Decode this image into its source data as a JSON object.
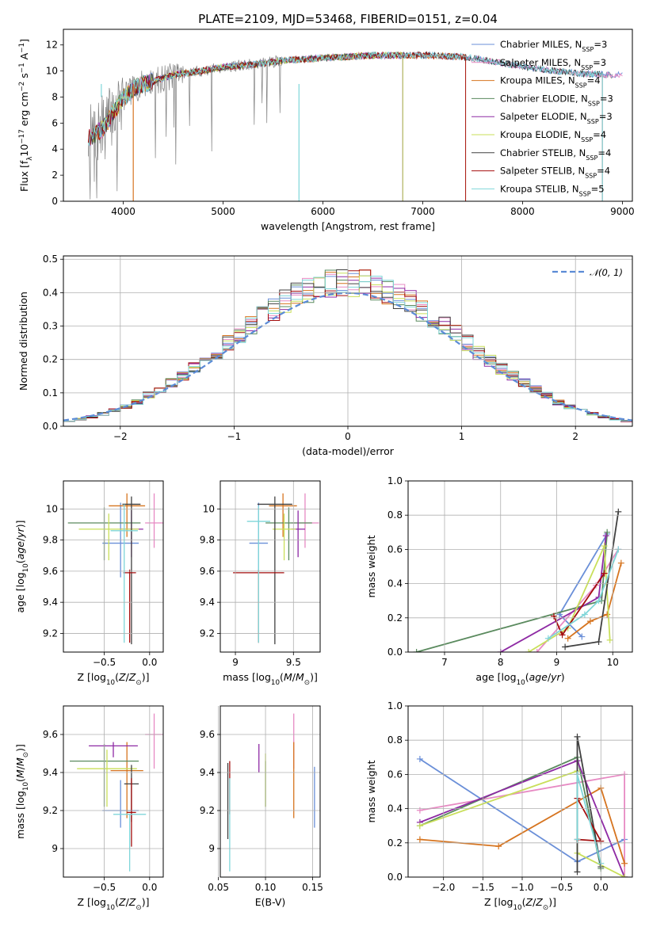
{
  "colors": [
    "#6a8fd8",
    "#e78ac3",
    "#d6741f",
    "#5a8a5e",
    "#8e2aa4",
    "#c9df5a",
    "#404040",
    "#a40e0e",
    "#7fd6d9"
  ],
  "chart_data": [
    {
      "id": "spectrum",
      "type": "line",
      "title": "PLATE=2109, MJD=53468, FIBERID=0151, z=0.04",
      "xlabel": "wavelength [Angstrom, rest frame]",
      "ylabel": "Flux [f",
      "ylabel_parts": [
        "Flux [f",
        "λ",
        "10",
        "−17",
        " erg cm",
        "−2",
        " s",
        "−1",
        " A",
        "−1",
        "]"
      ],
      "xlim": [
        3400,
        9100
      ],
      "ylim": [
        0,
        13.2
      ],
      "xticks": [
        4000,
        5000,
        6000,
        7000,
        8000,
        9000
      ],
      "yticks": [
        0,
        2,
        4,
        6,
        8,
        10,
        12
      ],
      "legend_position": "top-right",
      "continuum_x": [
        3650,
        3800,
        3900,
        4000,
        4100,
        4200,
        4300,
        4500,
        4700,
        5000,
        5300,
        5600,
        6000,
        6500,
        7000,
        7400,
        7800,
        8200,
        8600,
        8900
      ],
      "continuum_y": [
        4.8,
        5.6,
        6.8,
        7.9,
        8.6,
        9.0,
        9.2,
        9.7,
        9.9,
        10.3,
        10.5,
        10.8,
        11.0,
        11.2,
        11.2,
        11.1,
        10.6,
        10.1,
        9.8,
        9.7
      ],
      "series": [
        {
          "name": "Chabrier MILES",
          "nssp": "3",
          "cutoff": 9000
        },
        {
          "name": "Salpeter MILES",
          "nssp": "3",
          "cutoff": 9000
        },
        {
          "name": "Kroupa MILES",
          "nssp": "4",
          "cutoff": 7430
        },
        {
          "name": "Chabrier ELODIE",
          "nssp": "3",
          "cutoff": 6800
        },
        {
          "name": "Salpeter ELODIE",
          "nssp": "3",
          "cutoff": 6800
        },
        {
          "name": "Kroupa ELODIE",
          "nssp": "4",
          "cutoff": 6800
        },
        {
          "name": "Chabrier STELIB",
          "nssp": "4",
          "cutoff": 8800
        },
        {
          "name": "Salpeter STELIB",
          "nssp": "4",
          "cutoff": 7430
        },
        {
          "name": "Kroupa STELIB",
          "nssp": "5",
          "cutoff": 8800
        }
      ],
      "legend_suffix": "SSP"
    },
    {
      "id": "residuals",
      "type": "histogram",
      "xlabel": "(data-model)/error",
      "ylabel": "Normed distribution",
      "xlim": [
        -2.5,
        2.5
      ],
      "ylim": [
        0,
        0.51
      ],
      "xticks": [
        -2,
        -1,
        0,
        1,
        2
      ],
      "xtick_labels": [
        "−2",
        "−1",
        "0",
        "1",
        "2"
      ],
      "yticks": [
        0.0,
        0.1,
        0.2,
        0.3,
        0.4,
        0.5
      ],
      "ytick_labels": [
        "0.0",
        "0.1",
        "0.2",
        "0.3",
        "0.4",
        "0.5"
      ],
      "bin_width": 0.1,
      "reference_label": "𝒩(0, 1)",
      "legend_position": "top-right"
    },
    {
      "id": "age-vs-z",
      "type": "errorbar",
      "xlabel": "Z [log",
      "ylabel": "age  [log",
      "xlim": [
        -0.95,
        0.15
      ],
      "ylim": [
        9.08,
        10.18
      ],
      "xticks": [
        -0.5,
        0.0
      ],
      "xtick_labels": [
        "−0.5",
        "0.0"
      ],
      "yticks": [
        9.2,
        9.4,
        9.6,
        9.8,
        10.0
      ],
      "points": [
        {
          "x": -0.32,
          "y": 9.78,
          "xerr": 0.2,
          "yerr": [
            0.22,
            0.26
          ],
          "c": 0
        },
        {
          "x": 0.05,
          "y": 9.91,
          "xerr": 0.1,
          "yerr": [
            0.16,
            0.19
          ],
          "c": 1
        },
        {
          "x": -0.25,
          "y": 10.02,
          "xerr": 0.2,
          "yerr": [
            0.2,
            0.08
          ],
          "c": 2
        },
        {
          "x": -0.5,
          "y": 9.91,
          "xerr": 0.4,
          "yerr": [
            0.24,
            0.1
          ],
          "c": 3
        },
        {
          "x": -0.2,
          "y": 9.87,
          "xerr": 0.13,
          "yerr": [
            0.18,
            0.12
          ],
          "c": 4
        },
        {
          "x": -0.45,
          "y": 9.87,
          "xerr": 0.33,
          "yerr": [
            0.2,
            0.1
          ],
          "c": 5
        },
        {
          "x": -0.2,
          "y": 10.03,
          "xerr": 0.1,
          "yerr": [
            0.9,
            0.05
          ],
          "c": 6
        },
        {
          "x": -0.22,
          "y": 9.59,
          "xerr": 0.07,
          "yerr": [
            0.45,
            0.02
          ],
          "c": 7
        },
        {
          "x": -0.28,
          "y": 9.86,
          "xerr": 0.15,
          "yerr": [
            0.72,
            0.17
          ],
          "c": 8
        }
      ]
    },
    {
      "id": "age-vs-mass",
      "type": "errorbar",
      "xlabel": "mass [log",
      "ylabel": "",
      "xlim": [
        8.87,
        9.73
      ],
      "ylim": [
        9.08,
        10.18
      ],
      "xticks": [
        9.0,
        9.5
      ],
      "yticks": [
        9.2,
        9.4,
        9.6,
        9.8,
        10.0
      ],
      "points": [
        {
          "x": 9.2,
          "y": 9.78,
          "xerr": 0.08,
          "yerr": [
            0.2,
            0.26
          ],
          "c": 0
        },
        {
          "x": 9.6,
          "y": 9.91,
          "xerr": 0.12,
          "yerr": [
            0.16,
            0.19
          ],
          "c": 1
        },
        {
          "x": 9.41,
          "y": 10.02,
          "xerr": 0.12,
          "yerr": [
            0.2,
            0.08
          ],
          "c": 2
        },
        {
          "x": 9.46,
          "y": 9.91,
          "xerr": 0.2,
          "yerr": [
            0.24,
            0.1
          ],
          "c": 3
        },
        {
          "x": 9.54,
          "y": 9.87,
          "xerr": 0.06,
          "yerr": [
            0.18,
            0.12
          ],
          "c": 4
        },
        {
          "x": 9.42,
          "y": 9.87,
          "xerr": 0.1,
          "yerr": [
            0.2,
            0.1
          ],
          "c": 5
        },
        {
          "x": 9.34,
          "y": 10.03,
          "xerr": 0.15,
          "yerr": [
            0.9,
            0.05
          ],
          "c": 6
        },
        {
          "x": 9.2,
          "y": 9.59,
          "xerr": 0.22,
          "yerr": [
            0.45,
            0.02
          ],
          "c": 7
        },
        {
          "x": 9.2,
          "y": 9.92,
          "xerr": 0.1,
          "yerr": [
            0.78,
            0.1
          ],
          "c": 8
        }
      ]
    },
    {
      "id": "weight-vs-age",
      "type": "line",
      "xlabel": "age  [log",
      "ylabel": "mass weight",
      "xlim": [
        6.35,
        10.35
      ],
      "ylim": [
        0,
        1.0
      ],
      "xticks": [
        7,
        8,
        9,
        10
      ],
      "yticks": [
        0.0,
        0.2,
        0.4,
        0.6,
        0.8,
        1.0
      ],
      "ytick_labels": [
        "0.0",
        "0.2",
        "0.4",
        "0.6",
        "0.8",
        "1.0"
      ],
      "series": [
        {
          "c": 0,
          "x": [
            9.45,
            9.05,
            9.9
          ],
          "y": [
            0.09,
            0.22,
            0.69
          ]
        },
        {
          "c": 1,
          "x": [
            8.65,
            9.7,
            10.1
          ],
          "y": [
            0.0,
            0.39,
            0.6
          ]
        },
        {
          "c": 2,
          "x": [
            9.2,
            9.6,
            9.9,
            10.15
          ],
          "y": [
            0.08,
            0.18,
            0.22,
            0.52
          ]
        },
        {
          "c": 3,
          "x": [
            6.5,
            9.8,
            9.9
          ],
          "y": [
            0.0,
            0.3,
            0.7
          ]
        },
        {
          "c": 4,
          "x": [
            8.0,
            9.75,
            9.88
          ],
          "y": [
            0.0,
            0.32,
            0.68
          ]
        },
        {
          "c": 5,
          "x": [
            8.5,
            9.2,
            9.85,
            9.95
          ],
          "y": [
            0.0,
            0.14,
            0.62,
            0.07
          ]
        },
        {
          "c": 6,
          "x": [
            9.15,
            9.75,
            10.1
          ],
          "y": [
            0.03,
            0.06,
            0.82
          ]
        },
        {
          "c": 7,
          "x": [
            8.95,
            9.1,
            9.85
          ],
          "y": [
            0.21,
            0.1,
            0.46
          ]
        },
        {
          "c": 8,
          "x": [
            8.85,
            9.5,
            9.75,
            10.1
          ],
          "y": [
            0.08,
            0.22,
            0.3,
            0.6
          ]
        }
      ]
    },
    {
      "id": "mass-vs-z",
      "type": "errorbar",
      "xlabel": "Z [log",
      "ylabel": "mass [log",
      "xlim": [
        -0.95,
        0.15
      ],
      "ylim": [
        8.85,
        9.75
      ],
      "xticks": [
        -0.5,
        0.0
      ],
      "xtick_labels": [
        "−0.5",
        "0.0"
      ],
      "yticks": [
        9.0,
        9.2,
        9.4,
        9.6
      ],
      "points": [
        {
          "x": -0.32,
          "y": 9.2,
          "xerr": 0.2,
          "yerr": [
            0.09,
            0.16
          ],
          "c": 0
        },
        {
          "x": 0.05,
          "y": 9.6,
          "xerr": 0.1,
          "yerr": [
            0.18,
            0.11
          ],
          "c": 1
        },
        {
          "x": -0.25,
          "y": 9.41,
          "xerr": 0.18,
          "yerr": [
            0.25,
            0.15
          ],
          "c": 2
        },
        {
          "x": -0.5,
          "y": 9.46,
          "xerr": 0.38,
          "yerr": [
            0.24,
            0.09
          ],
          "c": 3
        },
        {
          "x": -0.4,
          "y": 9.54,
          "xerr": 0.27,
          "yerr": [
            0.06,
            0.02
          ],
          "c": 4
        },
        {
          "x": -0.47,
          "y": 9.42,
          "xerr": 0.33,
          "yerr": [
            0.2,
            0.1
          ],
          "c": 5
        },
        {
          "x": -0.2,
          "y": 9.34,
          "xerr": 0.08,
          "yerr": [
            0.2,
            0.1
          ],
          "c": 6
        },
        {
          "x": -0.2,
          "y": 9.19,
          "xerr": 0.05,
          "yerr": [
            0.18,
            0.18
          ],
          "c": 7
        },
        {
          "x": -0.22,
          "y": 9.18,
          "xerr": 0.18,
          "yerr": [
            0.3,
            0.0
          ],
          "c": 8
        }
      ]
    },
    {
      "id": "mass-vs-ebv",
      "type": "errorbar",
      "xlabel": "E(B-V)",
      "ylabel": "",
      "xlim": [
        0.052,
        0.158
      ],
      "ylim": [
        8.85,
        9.75
      ],
      "xticks": [
        0.05,
        0.1,
        0.15
      ],
      "xtick_labels": [
        "0.05",
        "0.10",
        "0.15"
      ],
      "yticks": [
        9.0,
        9.2,
        9.4,
        9.6
      ],
      "points": [
        {
          "x": 0.152,
          "y": 9.2,
          "xerr": 0,
          "yerr": [
            0.09,
            0.23
          ],
          "c": 0
        },
        {
          "x": 0.13,
          "y": 9.6,
          "xerr": 0,
          "yerr": [
            0.18,
            0.11
          ],
          "c": 1
        },
        {
          "x": 0.13,
          "y": 9.41,
          "xerr": 0,
          "yerr": [
            0.25,
            0.15
          ],
          "c": 2
        },
        {
          "x": 0.1,
          "y": 9.46,
          "xerr": 0,
          "yerr": [
            0.24,
            0.0
          ],
          "c": 3
        },
        {
          "x": 0.093,
          "y": 9.48,
          "xerr": 0,
          "yerr": [
            0.08,
            0.07
          ],
          "c": 4
        },
        {
          "x": 0.1,
          "y": 9.42,
          "xerr": 0,
          "yerr": [
            0.2,
            0.08
          ],
          "c": 5
        },
        {
          "x": 0.06,
          "y": 9.25,
          "xerr": 0,
          "yerr": [
            0.2,
            0.2
          ],
          "c": 6
        },
        {
          "x": 0.062,
          "y": 9.32,
          "xerr": 0,
          "yerr": [
            0.14,
            0.14
          ],
          "c": 7
        },
        {
          "x": 0.062,
          "y": 9.1,
          "xerr": 0,
          "yerr": [
            0.22,
            0.27
          ],
          "c": 8
        }
      ]
    },
    {
      "id": "weight-vs-z",
      "type": "line",
      "xlabel": "Z [log",
      "ylabel": "mass weight",
      "xlim": [
        -2.45,
        0.4
      ],
      "ylim": [
        0,
        1.0
      ],
      "xticks": [
        -2.0,
        -1.5,
        -1.0,
        -0.5,
        0.0
      ],
      "xtick_labels": [
        "−2.0",
        "−1.5",
        "−1.0",
        "−0.5",
        "0.0"
      ],
      "yticks": [
        0.0,
        0.2,
        0.4,
        0.6,
        0.8,
        1.0
      ],
      "ytick_labels": [
        "0.0",
        "0.2",
        "0.4",
        "0.6",
        "0.8",
        "1.0"
      ],
      "series": [
        {
          "c": 0,
          "x": [
            -2.3,
            -0.3,
            0.3
          ],
          "y": [
            0.69,
            0.09,
            0.22
          ]
        },
        {
          "c": 1,
          "x": [
            -2.3,
            0.3,
            0.3
          ],
          "y": [
            0.39,
            0.6,
            0.0
          ]
        },
        {
          "c": 2,
          "x": [
            -2.3,
            -1.3,
            0.0,
            0.3
          ],
          "y": [
            0.22,
            0.18,
            0.52,
            0.08
          ]
        },
        {
          "c": 3,
          "x": [
            -2.3,
            -0.3,
            0.0
          ],
          "y": [
            0.3,
            0.7,
            0.05
          ]
        },
        {
          "c": 4,
          "x": [
            -2.3,
            -0.3,
            0.3
          ],
          "y": [
            0.32,
            0.68,
            0.0
          ]
        },
        {
          "c": 5,
          "x": [
            -2.3,
            -0.3,
            -0.3,
            0.3
          ],
          "y": [
            0.3,
            0.62,
            0.14,
            0.0
          ]
        },
        {
          "c": 6,
          "x": [
            -0.3,
            -0.3,
            0.0
          ],
          "y": [
            0.03,
            0.82,
            0.06
          ]
        },
        {
          "c": 7,
          "x": [
            -0.3,
            0.0,
            -0.3
          ],
          "y": [
            0.46,
            0.21,
            0.22
          ]
        },
        {
          "c": 8,
          "x": [
            -0.3,
            -0.3,
            0.0
          ],
          "y": [
            0.22,
            0.6,
            0.08
          ]
        }
      ]
    }
  ]
}
